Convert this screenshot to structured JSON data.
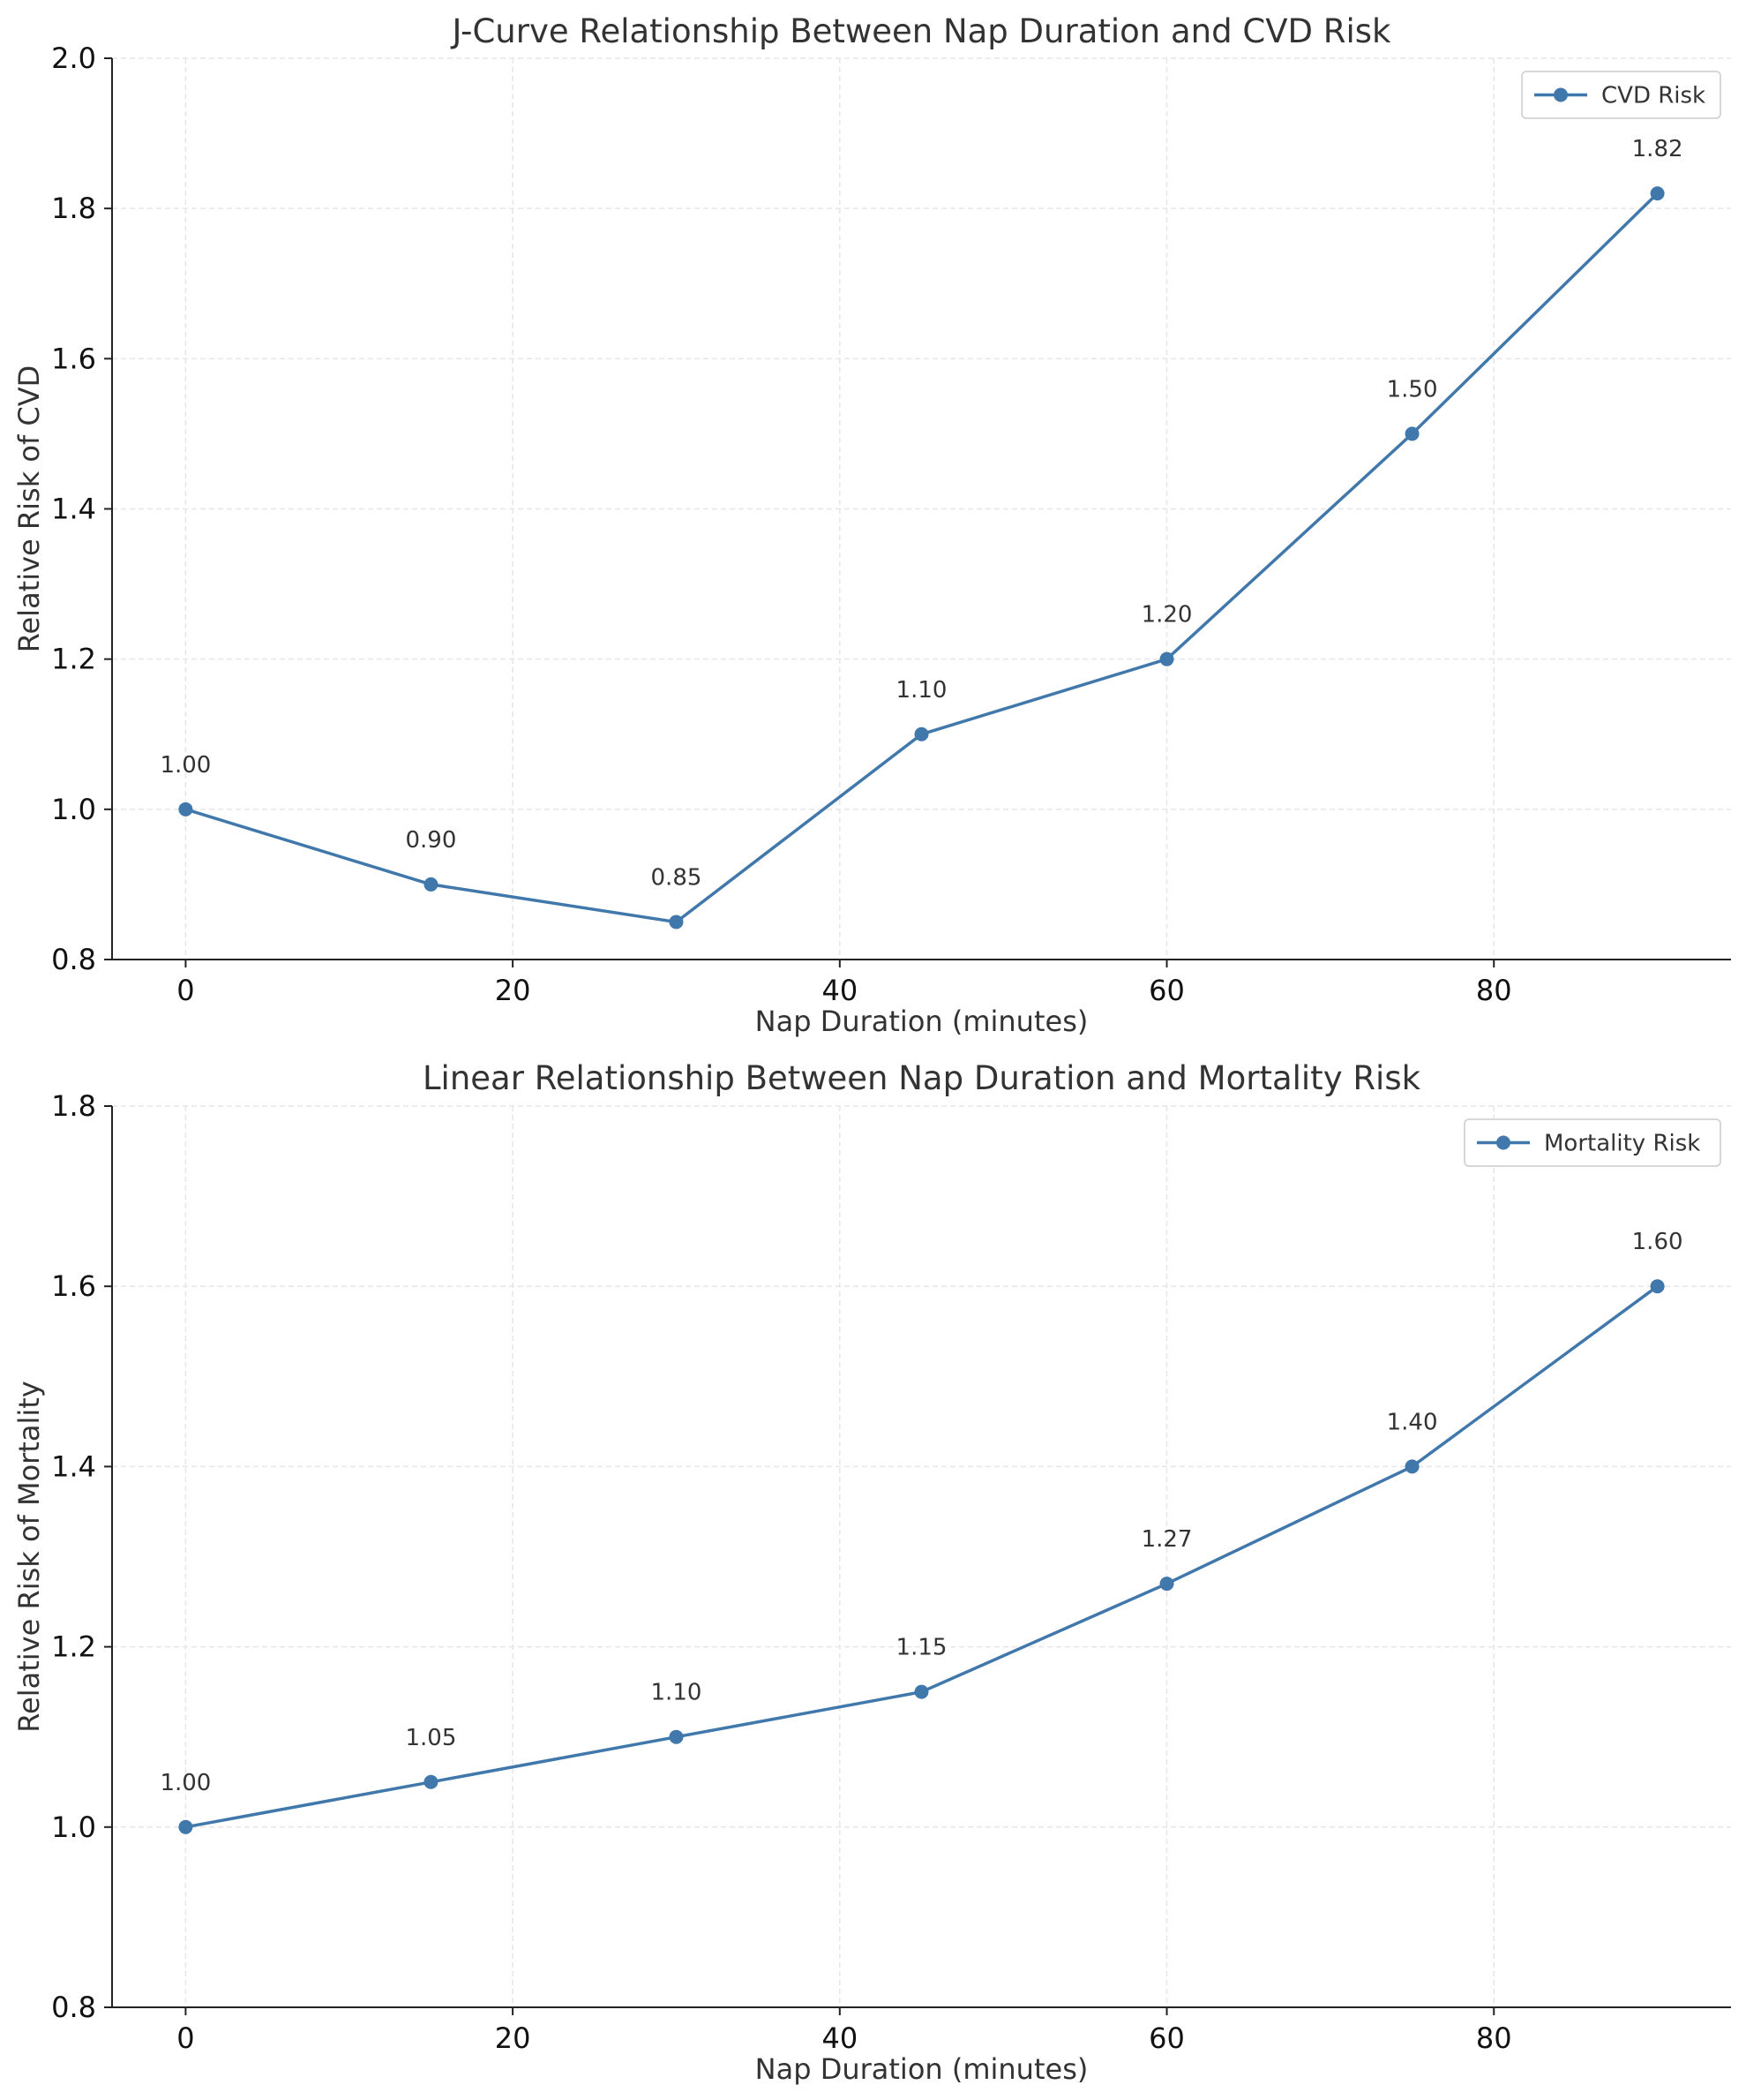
{
  "colors": {
    "series": "#4178ac",
    "grid": "#e6e6e6",
    "axis": "#222222",
    "text": "#333333"
  },
  "chart_data": [
    {
      "type": "line",
      "title": "J-Curve Relationship Between Nap Duration and CVD Risk",
      "xlabel": "Nap Duration (minutes)",
      "ylabel": "Relative Risk of CVD",
      "xlim": [
        -4.5,
        94.5
      ],
      "ylim": [
        0.8,
        2.0
      ],
      "xticks": [
        0,
        20,
        40,
        60,
        80
      ],
      "xtick_labels": [
        "0",
        "20",
        "40",
        "60",
        "80"
      ],
      "yticks": [
        0.8,
        1.0,
        1.2,
        1.4,
        1.6,
        1.8,
        2.0
      ],
      "ytick_labels": [
        "0.8",
        "1.0",
        "1.2",
        "1.4",
        "1.6",
        "1.8",
        "2.0"
      ],
      "grid": true,
      "legend_position": "top-right",
      "x": [
        0,
        15,
        30,
        45,
        60,
        75,
        90
      ],
      "series": [
        {
          "name": "CVD Risk",
          "values": [
            1.0,
            0.9,
            0.85,
            1.1,
            1.2,
            1.5,
            1.82
          ],
          "labels": [
            "1.00",
            "0.90",
            "0.85",
            "1.10",
            "1.20",
            "1.50",
            "1.82"
          ]
        }
      ]
    },
    {
      "type": "line",
      "title": "Linear Relationship Between Nap Duration and Mortality Risk",
      "xlabel": "Nap Duration (minutes)",
      "ylabel": "Relative Risk of Mortality",
      "xlim": [
        -4.5,
        94.5
      ],
      "ylim": [
        0.8,
        1.8
      ],
      "xticks": [
        0,
        20,
        40,
        60,
        80
      ],
      "xtick_labels": [
        "0",
        "20",
        "40",
        "60",
        "80"
      ],
      "yticks": [
        0.8,
        1.0,
        1.2,
        1.4,
        1.6,
        1.8
      ],
      "ytick_labels": [
        "0.8",
        "1.0",
        "1.2",
        "1.4",
        "1.6",
        "1.8"
      ],
      "grid": true,
      "legend_position": "top-right",
      "x": [
        0,
        15,
        30,
        45,
        60,
        75,
        90
      ],
      "series": [
        {
          "name": "Mortality Risk",
          "values": [
            1.0,
            1.05,
            1.1,
            1.15,
            1.27,
            1.4,
            1.6
          ],
          "labels": [
            "1.00",
            "1.05",
            "1.10",
            "1.15",
            "1.27",
            "1.40",
            "1.60"
          ]
        }
      ]
    }
  ]
}
